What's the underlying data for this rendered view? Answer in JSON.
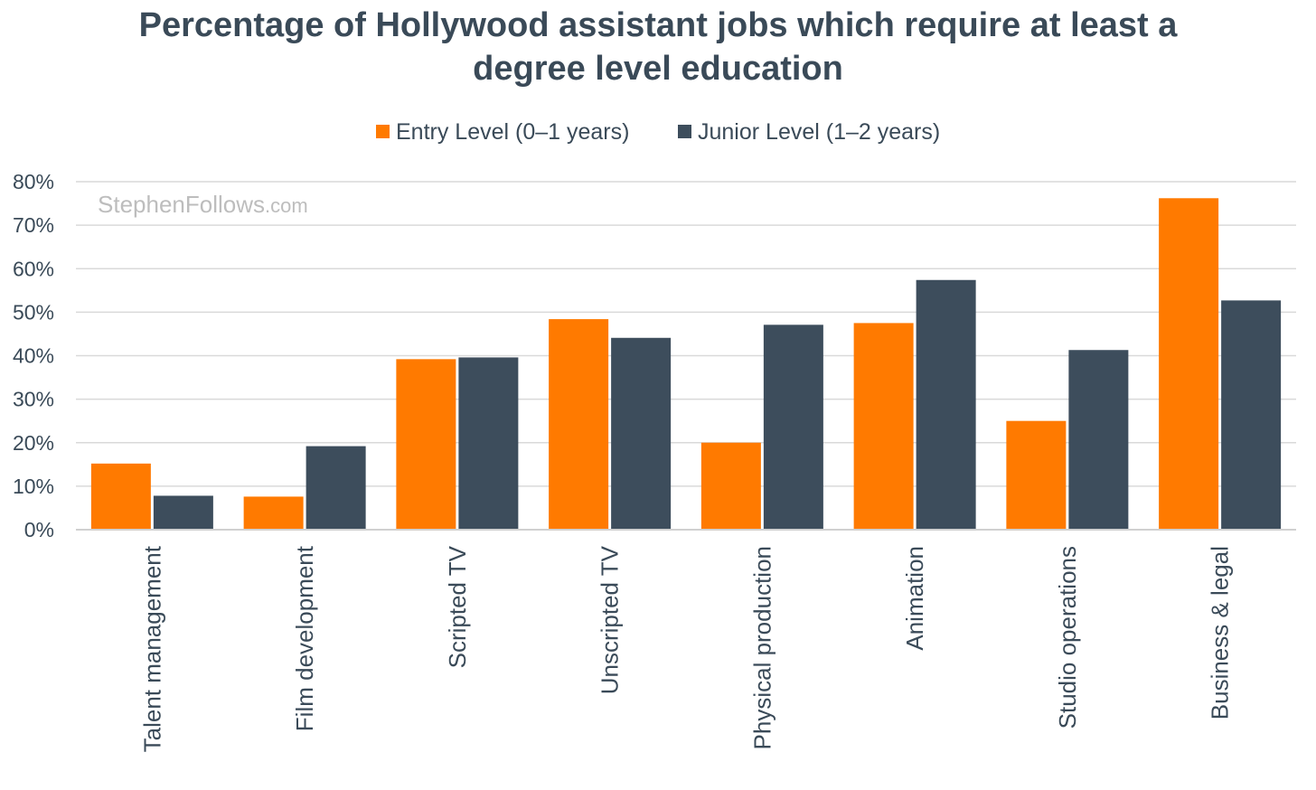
{
  "chart_data": {
    "type": "bar",
    "title": [
      "Percentage of Hollywood assistant jobs which require at least a",
      "degree level education"
    ],
    "watermark": {
      "main": "StephenFollows",
      "suffix": ".com"
    },
    "xlabel": "",
    "ylabel": "",
    "ylim": [
      0,
      80
    ],
    "yticks": [
      0,
      10,
      20,
      30,
      40,
      50,
      60,
      70,
      80
    ],
    "ytick_suffix": "%",
    "grid": true,
    "legend_position": "top-center",
    "categories": [
      "Talent management",
      "Film development",
      "Scripted TV",
      "Unscripted TV",
      "Physical production",
      "Animation",
      "Studio operations",
      "Business & legal"
    ],
    "series": [
      {
        "name": "Entry Level (0–1 years)",
        "color": "#ff7a00",
        "values": [
          15.2,
          7.6,
          39.2,
          48.4,
          20.0,
          47.5,
          25.0,
          76.2
        ]
      },
      {
        "name": "Junior Level (1–2 years)",
        "color": "#3d4d5c",
        "values": [
          7.8,
          19.2,
          39.6,
          44.1,
          47.1,
          57.4,
          41.3,
          52.7
        ]
      }
    ]
  }
}
